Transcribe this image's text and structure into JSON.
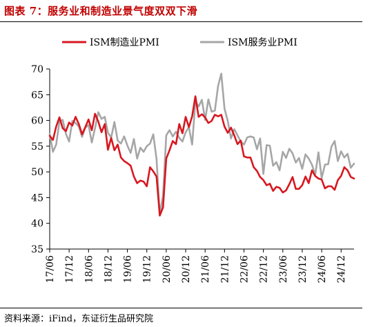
{
  "figure": {
    "title": "图表 7：服务业和制造业景气度双双下滑",
    "source": "资料来源：iFind，东证衍生品研究院"
  },
  "chart_data": {
    "type": "line",
    "title": "",
    "xlabel": "",
    "ylabel": "",
    "ylim": [
      35,
      70
    ],
    "yticks": [
      35,
      40,
      45,
      50,
      55,
      60,
      65,
      70
    ],
    "xlim": [
      "2017-06",
      "2025-04"
    ],
    "xticks": [
      "17/06",
      "17/12",
      "18/06",
      "18/12",
      "19/06",
      "19/12",
      "20/06",
      "20/12",
      "21/06",
      "21/12",
      "22/06",
      "22/12",
      "23/06",
      "23/12",
      "24/06",
      "24/12"
    ],
    "xtick_dates": [
      "2017-06",
      "2017-12",
      "2018-06",
      "2018-12",
      "2019-06",
      "2019-12",
      "2020-06",
      "2020-12",
      "2021-06",
      "2021-12",
      "2022-06",
      "2022-12",
      "2023-06",
      "2023-12",
      "2024-06",
      "2024-12"
    ],
    "legend": "top",
    "grid": false,
    "series": [
      {
        "name": "ISM制造业PMI",
        "color": "#d7171f",
        "x": [
          "2017-06",
          "2017-07",
          "2017-08",
          "2017-09",
          "2017-10",
          "2017-11",
          "2017-12",
          "2018-01",
          "2018-02",
          "2018-03",
          "2018-04",
          "2018-05",
          "2018-06",
          "2018-07",
          "2018-08",
          "2018-09",
          "2018-10",
          "2018-11",
          "2018-12",
          "2019-01",
          "2019-02",
          "2019-03",
          "2019-04",
          "2019-05",
          "2019-06",
          "2019-07",
          "2019-08",
          "2019-09",
          "2019-10",
          "2019-11",
          "2019-12",
          "2020-01",
          "2020-02",
          "2020-03",
          "2020-04",
          "2020-05",
          "2020-06",
          "2020-07",
          "2020-08",
          "2020-09",
          "2020-10",
          "2020-11",
          "2020-12",
          "2021-01",
          "2021-02",
          "2021-03",
          "2021-04",
          "2021-05",
          "2021-06",
          "2021-07",
          "2021-08",
          "2021-09",
          "2021-10",
          "2021-11",
          "2021-12",
          "2022-01",
          "2022-02",
          "2022-03",
          "2022-04",
          "2022-05",
          "2022-06",
          "2022-07",
          "2022-08",
          "2022-09",
          "2022-10",
          "2022-11",
          "2022-12",
          "2023-01",
          "2023-02",
          "2023-03",
          "2023-04",
          "2023-05",
          "2023-06",
          "2023-07",
          "2023-08",
          "2023-09",
          "2023-10",
          "2023-11",
          "2023-12",
          "2024-01",
          "2024-02",
          "2024-03",
          "2024-04",
          "2024-05",
          "2024-06",
          "2024-07",
          "2024-08",
          "2024-09",
          "2024-10",
          "2024-11",
          "2024-12",
          "2025-01",
          "2025-02",
          "2025-03",
          "2025-04"
        ],
        "values": [
          57.0,
          56.2,
          58.8,
          60.6,
          58.5,
          57.9,
          59.6,
          59.0,
          60.7,
          59.3,
          57.3,
          58.7,
          60.2,
          58.1,
          61.3,
          59.8,
          57.7,
          59.3,
          54.3,
          56.6,
          54.2,
          55.3,
          52.8,
          52.1,
          51.7,
          51.2,
          49.1,
          47.8,
          48.3,
          48.1,
          47.2,
          50.9,
          50.1,
          49.1,
          41.5,
          43.1,
          52.6,
          54.2,
          56.0,
          55.4,
          59.3,
          57.5,
          60.7,
          58.7,
          60.8,
          64.7,
          60.7,
          61.2,
          60.6,
          59.5,
          59.9,
          61.1,
          60.8,
          61.1,
          58.8,
          57.6,
          58.6,
          57.1,
          55.4,
          56.1,
          53.0,
          52.8,
          52.8,
          50.9,
          50.2,
          49.0,
          48.4,
          47.4,
          47.7,
          46.3,
          47.1,
          46.9,
          46.0,
          46.4,
          47.6,
          49.0,
          46.7,
          46.7,
          47.4,
          49.1,
          47.8,
          50.3,
          49.2,
          48.7,
          48.5,
          46.8,
          47.2,
          47.2,
          46.5,
          48.4,
          49.2,
          50.9,
          50.3,
          49.0,
          48.7
        ]
      },
      {
        "name": "ISM服务业PMI",
        "color": "#a6a6a6",
        "x": [
          "2017-06",
          "2017-07",
          "2017-08",
          "2017-09",
          "2017-10",
          "2017-11",
          "2017-12",
          "2018-01",
          "2018-02",
          "2018-03",
          "2018-04",
          "2018-05",
          "2018-06",
          "2018-07",
          "2018-08",
          "2018-09",
          "2018-10",
          "2018-11",
          "2018-12",
          "2019-01",
          "2019-02",
          "2019-03",
          "2019-04",
          "2019-05",
          "2019-06",
          "2019-07",
          "2019-08",
          "2019-09",
          "2019-10",
          "2019-11",
          "2019-12",
          "2020-01",
          "2020-02",
          "2020-03",
          "2020-04",
          "2020-05",
          "2020-06",
          "2020-07",
          "2020-08",
          "2020-09",
          "2020-10",
          "2020-11",
          "2020-12",
          "2021-01",
          "2021-02",
          "2021-03",
          "2021-04",
          "2021-05",
          "2021-06",
          "2021-07",
          "2021-08",
          "2021-09",
          "2021-10",
          "2021-11",
          "2021-12",
          "2022-01",
          "2022-02",
          "2022-03",
          "2022-04",
          "2022-05",
          "2022-06",
          "2022-07",
          "2022-08",
          "2022-09",
          "2022-10",
          "2022-11",
          "2022-12",
          "2023-01",
          "2023-02",
          "2023-03",
          "2023-04",
          "2023-05",
          "2023-06",
          "2023-07",
          "2023-08",
          "2023-09",
          "2023-10",
          "2023-11",
          "2023-12",
          "2024-01",
          "2024-02",
          "2024-03",
          "2024-04",
          "2024-05",
          "2024-06",
          "2024-07",
          "2024-08",
          "2024-09",
          "2024-10",
          "2024-11",
          "2024-12",
          "2025-01",
          "2025-02",
          "2025-03",
          "2025-04"
        ],
        "values": [
          57.4,
          53.9,
          55.3,
          59.8,
          60.1,
          57.4,
          55.9,
          59.9,
          59.5,
          58.8,
          56.8,
          58.6,
          59.1,
          55.7,
          58.5,
          61.6,
          60.3,
          60.7,
          57.6,
          56.7,
          59.7,
          56.1,
          55.5,
          56.9,
          55.1,
          53.7,
          56.4,
          52.6,
          54.7,
          53.9,
          55.0,
          55.5,
          57.3,
          52.5,
          41.8,
          45.4,
          57.1,
          58.1,
          56.9,
          57.8,
          56.6,
          55.9,
          57.7,
          58.7,
          55.3,
          63.7,
          62.7,
          64.0,
          60.1,
          64.1,
          61.7,
          61.9,
          66.7,
          69.1,
          62.3,
          59.9,
          56.5,
          58.3,
          57.1,
          55.9,
          55.3,
          56.7,
          56.9,
          56.7,
          54.4,
          56.5,
          49.6,
          55.2,
          55.1,
          51.2,
          51.9,
          50.3,
          53.9,
          52.7,
          54.5,
          53.6,
          51.8,
          52.7,
          50.6,
          53.4,
          52.6,
          51.4,
          49.4,
          53.8,
          48.8,
          51.4,
          51.5,
          54.9,
          56.0,
          52.1,
          54.0,
          52.8,
          53.5,
          50.8,
          51.6
        ]
      }
    ]
  }
}
